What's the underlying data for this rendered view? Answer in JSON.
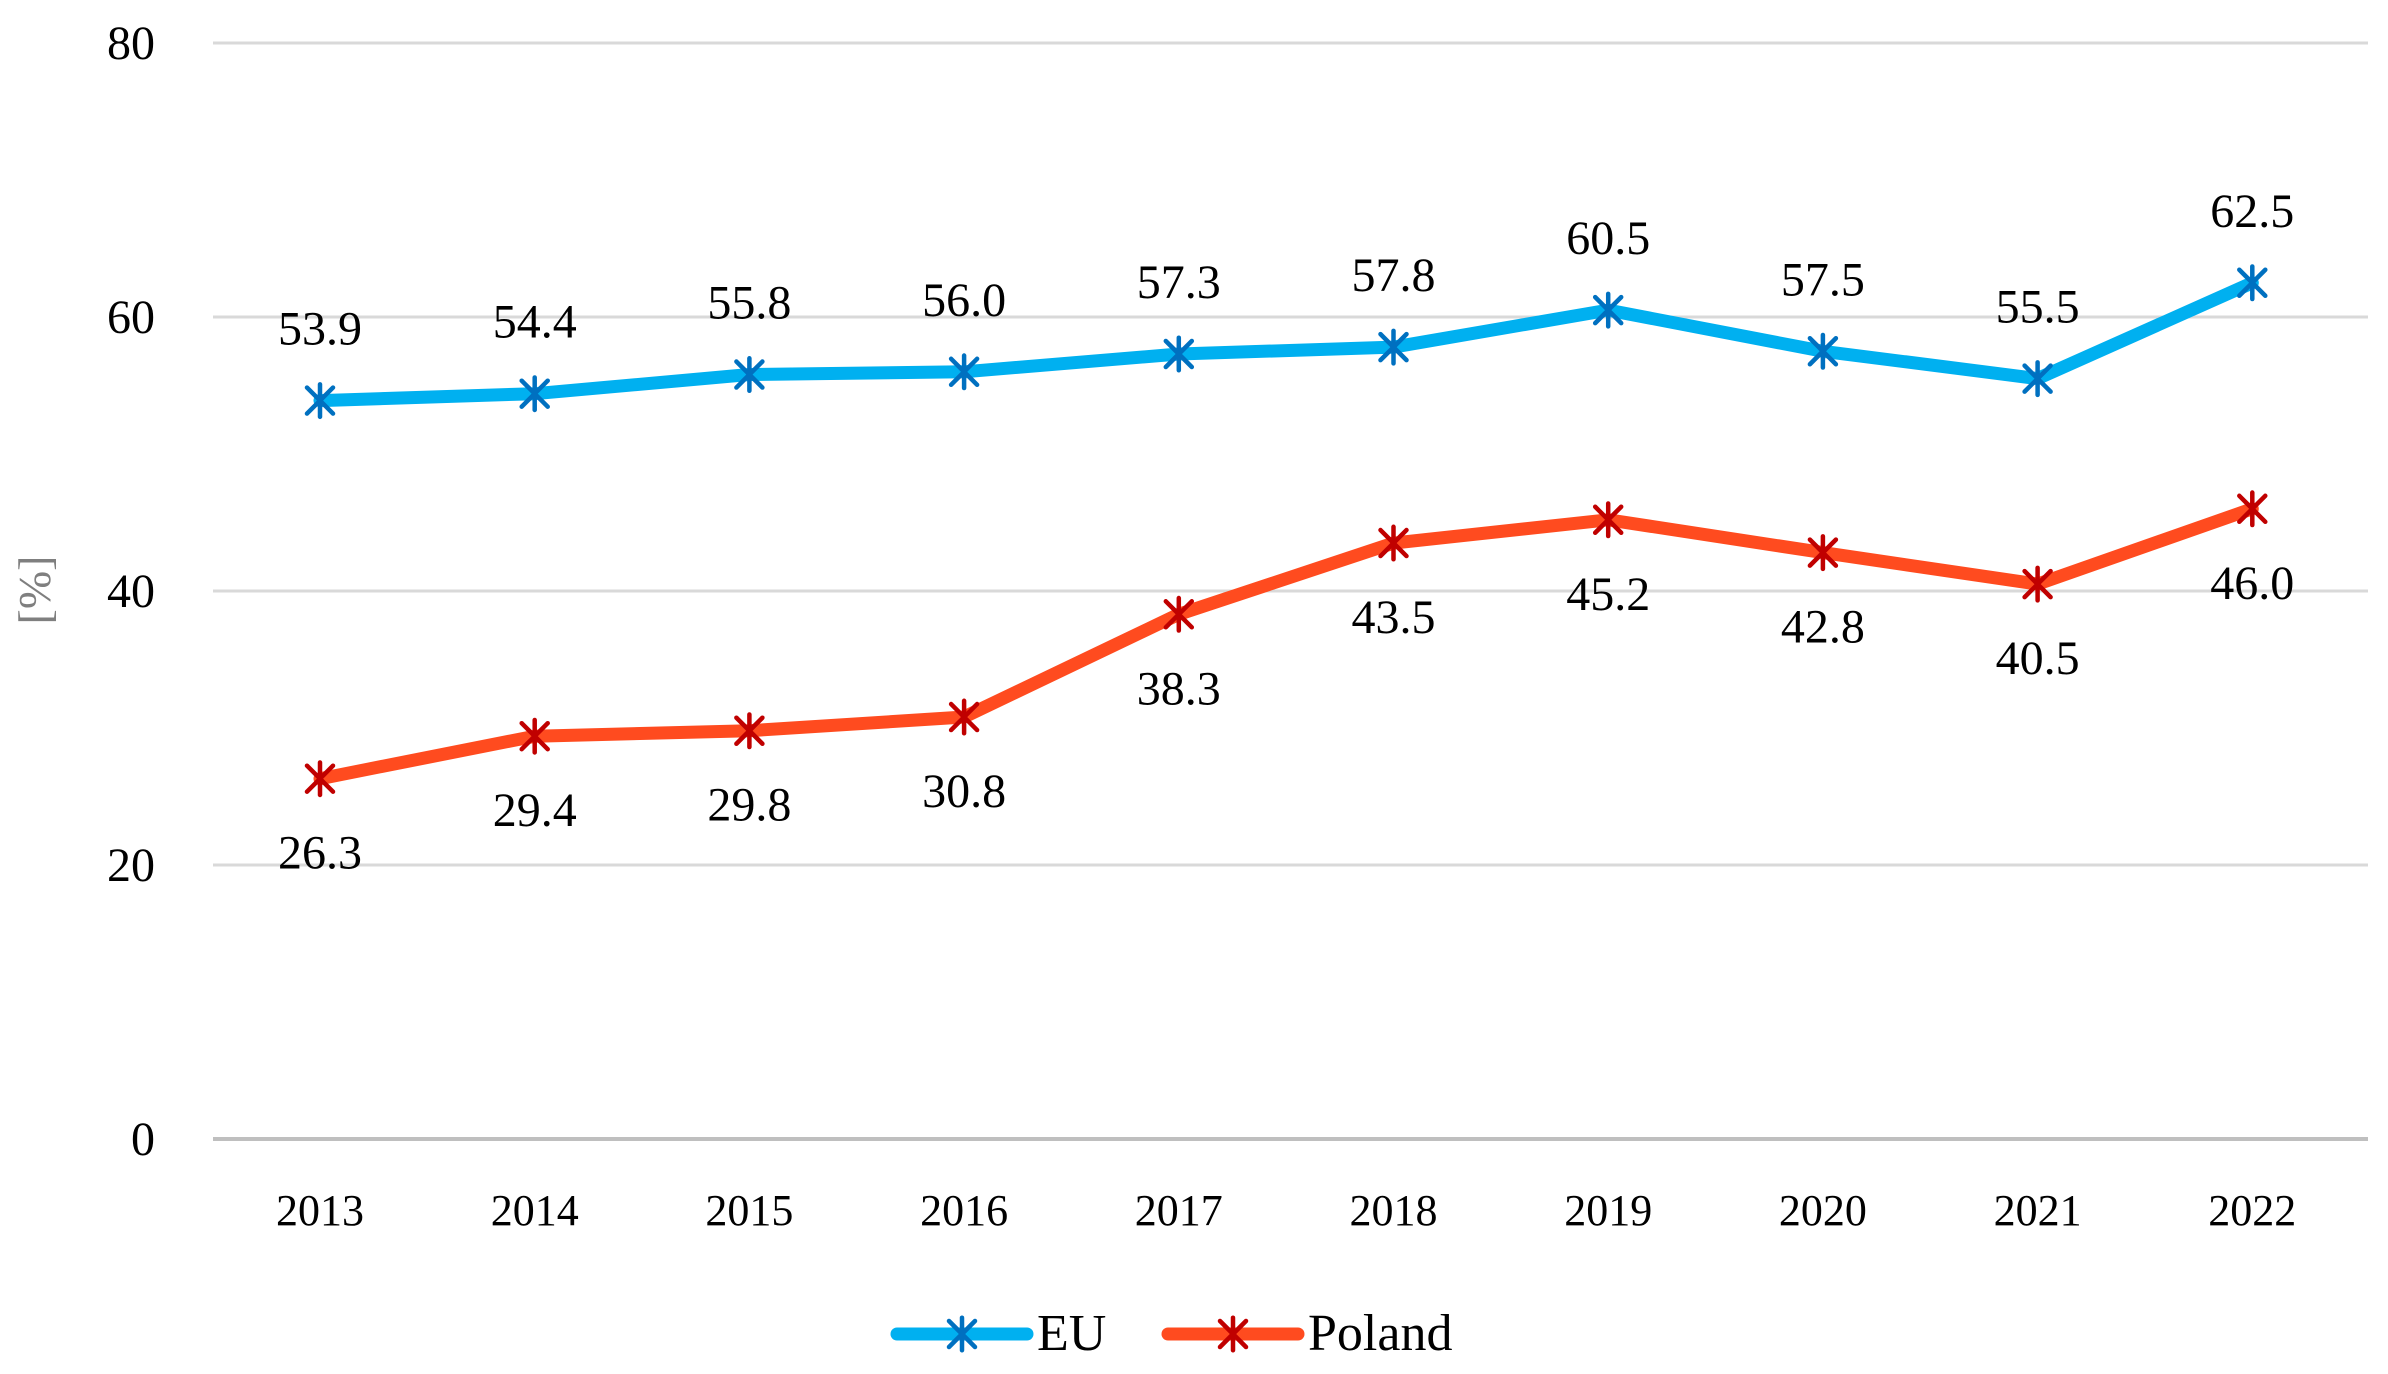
{
  "chart_data": {
    "type": "line",
    "title": "",
    "xlabel": "",
    "ylabel": "[%]",
    "ylim": [
      0,
      80
    ],
    "yticks": [
      0,
      20,
      40,
      60,
      80
    ],
    "grid": true,
    "legend_position": "bottom-center",
    "categories": [
      "2013",
      "2014",
      "2015",
      "2016",
      "2017",
      "2018",
      "2019",
      "2020",
      "2021",
      "2022"
    ],
    "series": [
      {
        "name": "EU",
        "color": "#00B0F0",
        "marker_color": "#0070C0",
        "values": [
          53.9,
          54.4,
          55.8,
          56.0,
          57.3,
          57.8,
          60.5,
          57.5,
          55.5,
          62.5
        ],
        "labels": [
          "53.9",
          "54.4",
          "55.8",
          "56.0",
          "57.3",
          "57.8",
          "60.5",
          "57.5",
          "55.5",
          "62.5"
        ],
        "label_position": "above"
      },
      {
        "name": "Poland",
        "color": "#FF4B1F",
        "marker_color": "#C00000",
        "values": [
          26.3,
          29.4,
          29.8,
          30.8,
          38.3,
          43.5,
          45.2,
          42.8,
          40.5,
          46.0
        ],
        "labels": [
          "26.3",
          "29.4",
          "29.8",
          "30.8",
          "38.3",
          "43.5",
          "45.2",
          "42.8",
          "40.5",
          "46.0"
        ],
        "label_position": "below"
      }
    ]
  }
}
